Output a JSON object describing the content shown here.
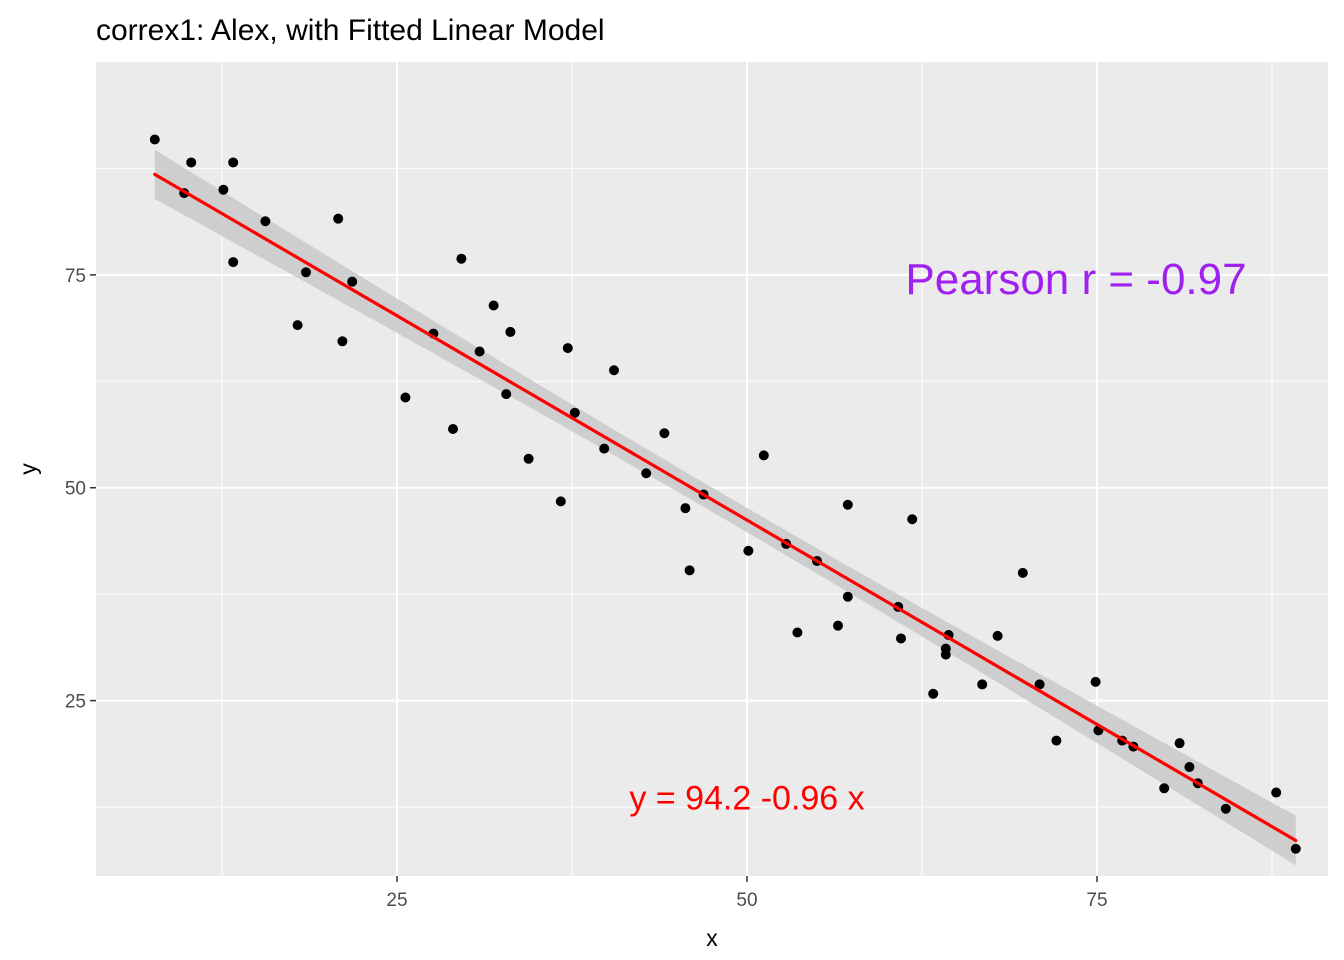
{
  "chart_data": {
    "type": "scatter",
    "title": "correx1: Alex, with Fitted Linear Model",
    "xlabel": "x",
    "ylabel": "y",
    "xlim": [
      3.5,
      91.5
    ],
    "ylim": [
      4.4,
      100.0
    ],
    "x_ticks": [
      25,
      50,
      75
    ],
    "x_tick_labels": [
      "25",
      "50",
      "75"
    ],
    "y_ticks": [
      25,
      50,
      75
    ],
    "y_tick_labels": [
      "25",
      "50",
      "75"
    ],
    "grid": true,
    "legend": "none",
    "background": "#ebebeb",
    "colors": {
      "points": "#000000",
      "fit_line": "#ff0000",
      "ribbon": "#c9c9c9",
      "pearson": "#a020f0",
      "equation": "#ff0000"
    },
    "points": [
      {
        "x": 7.7,
        "y": 90.9
      },
      {
        "x": 9.8,
        "y": 84.6
      },
      {
        "x": 10.3,
        "y": 88.2
      },
      {
        "x": 12.6,
        "y": 85.0
      },
      {
        "x": 13.3,
        "y": 88.2
      },
      {
        "x": 13.3,
        "y": 76.5
      },
      {
        "x": 15.6,
        "y": 81.3
      },
      {
        "x": 17.9,
        "y": 69.1
      },
      {
        "x": 18.5,
        "y": 75.3
      },
      {
        "x": 20.8,
        "y": 81.6
      },
      {
        "x": 21.1,
        "y": 67.2
      },
      {
        "x": 21.8,
        "y": 74.2
      },
      {
        "x": 25.6,
        "y": 60.6
      },
      {
        "x": 27.6,
        "y": 68.1
      },
      {
        "x": 29.0,
        "y": 56.9
      },
      {
        "x": 29.6,
        "y": 76.9
      },
      {
        "x": 30.9,
        "y": 66.0
      },
      {
        "x": 31.9,
        "y": 71.4
      },
      {
        "x": 32.8,
        "y": 61.0
      },
      {
        "x": 33.1,
        "y": 68.3
      },
      {
        "x": 34.4,
        "y": 53.4
      },
      {
        "x": 36.7,
        "y": 48.4
      },
      {
        "x": 37.2,
        "y": 66.4
      },
      {
        "x": 37.7,
        "y": 58.8
      },
      {
        "x": 39.8,
        "y": 54.6
      },
      {
        "x": 40.5,
        "y": 63.8
      },
      {
        "x": 42.8,
        "y": 51.7
      },
      {
        "x": 44.1,
        "y": 56.4
      },
      {
        "x": 45.6,
        "y": 47.6
      },
      {
        "x": 45.9,
        "y": 40.3
      },
      {
        "x": 46.9,
        "y": 49.2
      },
      {
        "x": 50.1,
        "y": 42.6
      },
      {
        "x": 51.2,
        "y": 53.8
      },
      {
        "x": 52.8,
        "y": 43.4
      },
      {
        "x": 53.6,
        "y": 33.0
      },
      {
        "x": 55.0,
        "y": 41.4
      },
      {
        "x": 56.5,
        "y": 33.8
      },
      {
        "x": 57.2,
        "y": 48.0
      },
      {
        "x": 57.2,
        "y": 37.2
      },
      {
        "x": 60.8,
        "y": 36.0
      },
      {
        "x": 61.0,
        "y": 32.3
      },
      {
        "x": 61.8,
        "y": 46.3
      },
      {
        "x": 63.3,
        "y": 25.8
      },
      {
        "x": 64.2,
        "y": 31.1
      },
      {
        "x": 64.2,
        "y": 30.4
      },
      {
        "x": 64.4,
        "y": 32.7
      },
      {
        "x": 66.8,
        "y": 26.9
      },
      {
        "x": 67.9,
        "y": 32.6
      },
      {
        "x": 69.7,
        "y": 40.0
      },
      {
        "x": 70.9,
        "y": 26.9
      },
      {
        "x": 72.1,
        "y": 20.3
      },
      {
        "x": 74.9,
        "y": 27.2
      },
      {
        "x": 75.1,
        "y": 21.5
      },
      {
        "x": 76.8,
        "y": 20.3
      },
      {
        "x": 77.6,
        "y": 19.6
      },
      {
        "x": 79.8,
        "y": 14.7
      },
      {
        "x": 80.9,
        "y": 20.0
      },
      {
        "x": 81.6,
        "y": 17.2
      },
      {
        "x": 82.2,
        "y": 15.3
      },
      {
        "x": 84.2,
        "y": 12.3
      },
      {
        "x": 87.8,
        "y": 14.2
      },
      {
        "x": 89.2,
        "y": 7.6
      }
    ],
    "fit": {
      "intercept": 94.2,
      "slope": -0.96,
      "x_range": [
        7.7,
        89.2
      ]
    },
    "annotations": [
      {
        "key": "pearson",
        "text": "Pearson r =  -0.97",
        "x": 73.5,
        "y": 74.5
      },
      {
        "key": "equation",
        "text": "y =  94.2 -0.96 x",
        "x": 50.0,
        "y": 13.6
      }
    ]
  }
}
